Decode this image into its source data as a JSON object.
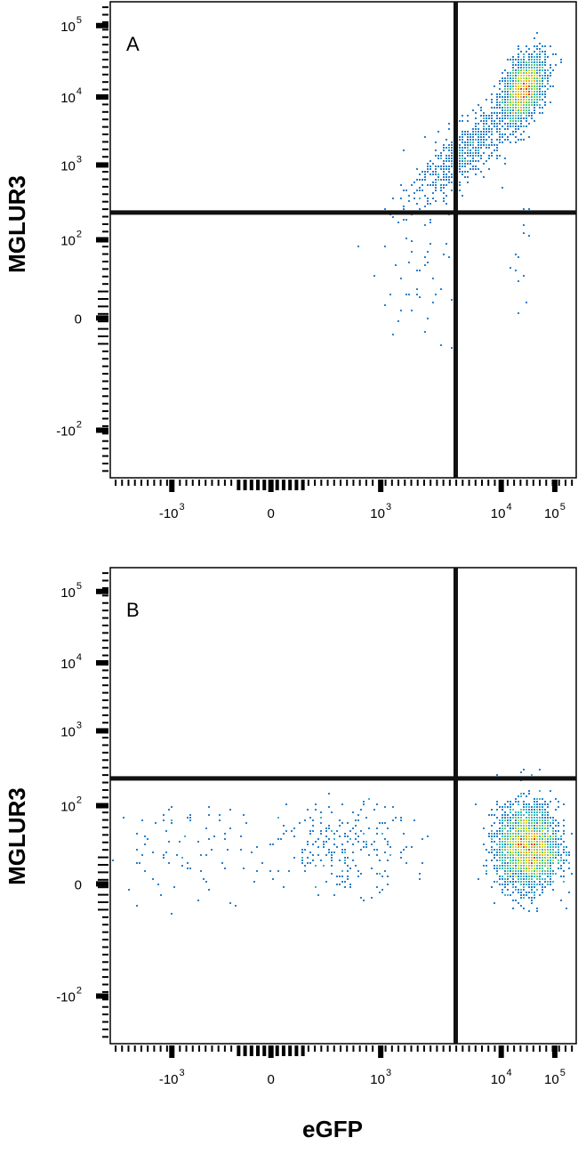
{
  "chart_data": [
    {
      "type": "scatter",
      "panel_label": "A",
      "xlabel": "eGFP",
      "ylabel": "MGLUR3",
      "x_scale": "biexponential",
      "y_scale": "biexponential",
      "x_ticks": [
        {
          "main": "-10",
          "sup": "3",
          "value": -1000
        },
        {
          "main": "0",
          "sup": "",
          "value": 0
        },
        {
          "main": "10",
          "sup": "3",
          "value": 1000
        },
        {
          "main": "10",
          "sup": "4",
          "value": 10000
        },
        {
          "main": "10",
          "sup": "5",
          "value": 100000
        }
      ],
      "y_ticks": [
        {
          "main": "-10",
          "sup": "2",
          "value": -100
        },
        {
          "main": "0",
          "sup": "",
          "value": 0
        },
        {
          "main": "10",
          "sup": "2",
          "value": 100
        },
        {
          "main": "10",
          "sup": "3",
          "value": 1000
        },
        {
          "main": "10",
          "sup": "4",
          "value": 10000
        },
        {
          "main": "10",
          "sup": "5",
          "value": 100000
        }
      ],
      "quadrant_gate": {
        "x": 3000,
        "y": 170
      },
      "populations": [
        {
          "name": "",
          "n": 1900,
          "mean_log_x": 4.43,
          "sd_log_x": 0.2,
          "mean_log_y": 4.1,
          "sd_log_y": 0.24,
          "corr": 0.45
        },
        {
          "name": "",
          "n": 650,
          "mean_log_x": 3.35,
          "sd_log_x": 0.5,
          "mean_log_y": 3.2,
          "sd_log_y": 0.38,
          "corr": 0.8
        },
        {
          "name": "",
          "n": 45,
          "mean_log_x": 2.4,
          "sd_log_x": 0.45,
          "mean_log_y": 1.35,
          "sd_log_y": 0.55,
          "corr": 0.2
        },
        {
          "name": "",
          "n": 14,
          "mean_log_x": 4.35,
          "sd_log_x": 0.15,
          "mean_log_y": 1.4,
          "sd_log_y": 0.55,
          "corr": 0
        }
      ]
    },
    {
      "type": "scatter",
      "panel_label": "B",
      "xlabel": "eGFP",
      "ylabel": "MGLUR3",
      "x_scale": "biexponential",
      "y_scale": "biexponential",
      "x_ticks": [
        {
          "main": "-10",
          "sup": "3",
          "value": -1000
        },
        {
          "main": "0",
          "sup": "",
          "value": 0
        },
        {
          "main": "10",
          "sup": "3",
          "value": 1000
        },
        {
          "main": "10",
          "sup": "4",
          "value": 10000
        },
        {
          "main": "10",
          "sup": "5",
          "value": 100000
        }
      ],
      "y_ticks": [
        {
          "main": "-10",
          "sup": "2",
          "value": -100
        },
        {
          "main": "0",
          "sup": "",
          "value": 0
        },
        {
          "main": "10",
          "sup": "2",
          "value": 100
        },
        {
          "main": "10",
          "sup": "3",
          "value": 1000
        },
        {
          "main": "10",
          "sup": "4",
          "value": 10000
        },
        {
          "main": "10",
          "sup": "5",
          "value": 100000
        }
      ],
      "quadrant_gate": {
        "x": 3000,
        "y": 170
      },
      "populations": [
        {
          "name": "",
          "n": 2600,
          "mean_log_x": 4.5,
          "sd_log_x": 0.28,
          "mean_log_y": 1.28,
          "sd_log_y": 0.3,
          "corr": 0
        },
        {
          "name": "",
          "n": 230,
          "mean_log_x": 1.1,
          "sd_log_x": 0.6,
          "mean_log_y": 1.28,
          "sd_log_y": 0.32,
          "corr": 0
        },
        {
          "name": "",
          "n": 90,
          "mean_log_x": -1.6,
          "sd_log_x": 0.9,
          "mean_log_y": 1.25,
          "sd_log_y": 0.35,
          "corr": 0
        },
        {
          "name": "",
          "n": 4,
          "mean_log_x": 4.55,
          "sd_log_x": 0.1,
          "mean_log_y": 2.4,
          "sd_log_y": 0.05,
          "corr": 0
        }
      ]
    }
  ],
  "colors": {
    "axis": "#000000",
    "gate": "#111111",
    "density_scale": [
      "#1f3f9e",
      "#2a7fc8",
      "#38b6c8",
      "#5fcf6e",
      "#c8dd2a",
      "#f5a623",
      "#e83a1c"
    ]
  }
}
